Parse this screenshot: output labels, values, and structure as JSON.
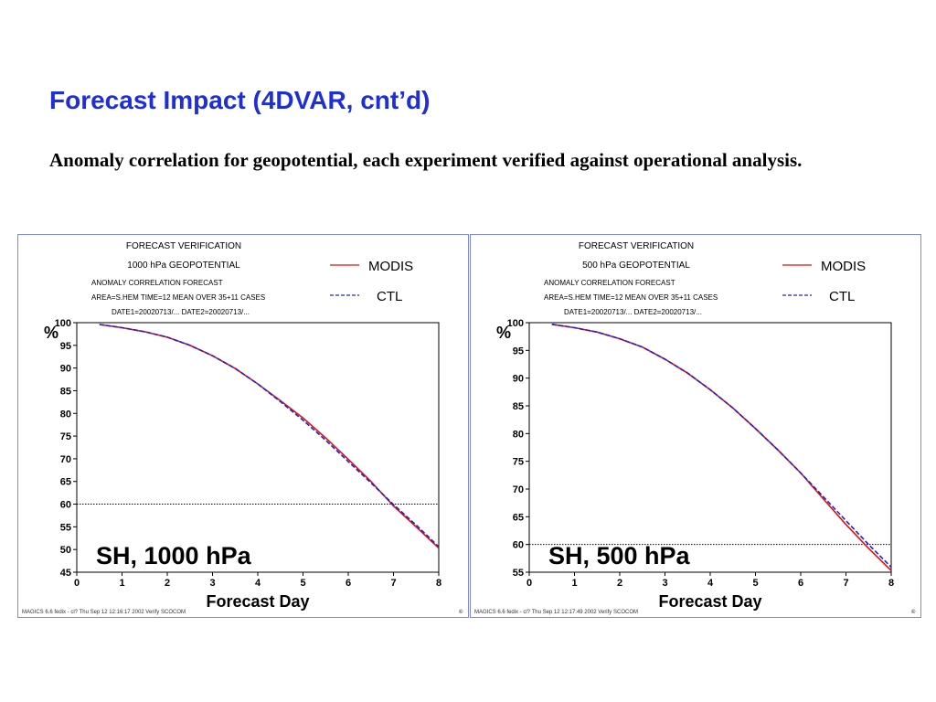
{
  "slide": {
    "title": "Forecast Impact (4DVAR, cnt’d)",
    "subtitle": "Anomaly correlation for geopotential, each experiment verified against operational analysis."
  },
  "colors": {
    "title": "#1f2fd6",
    "modis": "#e01010",
    "ctl": "#2020d0",
    "frame": "#7f86e8"
  },
  "chart_data": [
    {
      "type": "line",
      "header": [
        "FORECAST VERIFICATION",
        "1000 hPa GEOPOTENTIAL",
        "ANOMALY CORRELATION                FORECAST",
        "AREA=S.HEM    TIME=12   MEAN OVER 35+11 CASES",
        "DATE1=20020713/... DATE2=20020713/..."
      ],
      "annotation": "SH, 1000 hPa",
      "xlabel": "Forecast Day",
      "ylabel": "%",
      "xlim": [
        0,
        8
      ],
      "ylim": [
        45,
        100
      ],
      "xticks": [
        0,
        1,
        2,
        3,
        4,
        5,
        6,
        7,
        8
      ],
      "yticks": [
        45,
        50,
        55,
        60,
        65,
        70,
        75,
        80,
        85,
        90,
        95,
        100
      ],
      "reference_line": 60,
      "legend_placement": "top-right",
      "x": [
        0.5,
        1,
        1.5,
        2,
        2.5,
        3,
        3.5,
        4,
        4.5,
        5,
        5.5,
        6,
        6.5,
        7,
        7.5,
        8
      ],
      "series": [
        {
          "name": "MODIS",
          "style": "solid",
          "color": "#e01010",
          "values": [
            99.6,
            98.9,
            98.0,
            96.8,
            95.0,
            92.7,
            89.9,
            86.5,
            82.8,
            79.0,
            74.6,
            69.9,
            65.0,
            59.6,
            55.0,
            50.3
          ]
        },
        {
          "name": "CTL",
          "style": "dashed",
          "color": "#2020d0",
          "values": [
            99.6,
            98.9,
            98.0,
            96.8,
            95.0,
            92.7,
            89.9,
            86.5,
            82.6,
            78.5,
            74.1,
            69.4,
            64.7,
            59.9,
            55.4,
            50.6
          ]
        }
      ],
      "footer_left": "MAGICS 6.6 fedix - cl? Thu Sep 12 12:16:17 2002 Verify SCOCOM",
      "footer_right": "©"
    },
    {
      "type": "line",
      "header": [
        "FORECAST VERIFICATION",
        "500 hPa GEOPOTENTIAL",
        "ANOMALY CORRELATION                FORECAST",
        "AREA=S.HEM    TIME=12   MEAN OVER 35+11 CASES",
        "DATE1=20020713/... DATE2=20020713/..."
      ],
      "annotation": "SH, 500 hPa",
      "xlabel": "Forecast Day",
      "ylabel": "%",
      "xlim": [
        0,
        8
      ],
      "ylim": [
        55,
        100
      ],
      "xticks": [
        0,
        1,
        2,
        3,
        4,
        5,
        6,
        7,
        8
      ],
      "yticks": [
        55,
        60,
        65,
        70,
        75,
        80,
        85,
        90,
        95,
        100
      ],
      "reference_line": 60,
      "legend_placement": "top-right",
      "x": [
        0.5,
        1,
        1.5,
        2,
        2.5,
        3,
        3.5,
        4,
        4.5,
        5,
        5.5,
        6,
        6.5,
        7,
        7.5,
        8
      ],
      "series": [
        {
          "name": "MODIS",
          "style": "solid",
          "color": "#e01010",
          "values": [
            99.7,
            99.1,
            98.3,
            97.1,
            95.6,
            93.4,
            90.9,
            87.9,
            84.6,
            80.9,
            77.0,
            72.9,
            68.2,
            63.6,
            59.3,
            55.3
          ]
        },
        {
          "name": "CTL",
          "style": "dashed",
          "color": "#2020d0",
          "values": [
            99.7,
            99.1,
            98.3,
            97.1,
            95.6,
            93.4,
            90.9,
            87.9,
            84.6,
            80.9,
            77.0,
            72.9,
            68.6,
            64.3,
            60.0,
            55.9
          ]
        }
      ],
      "footer_left": "MAGICS 6.6 fedix - cl? Thu Sep 12 12:17:49 2002 Verify SCOCOM",
      "footer_right": "©"
    }
  ]
}
